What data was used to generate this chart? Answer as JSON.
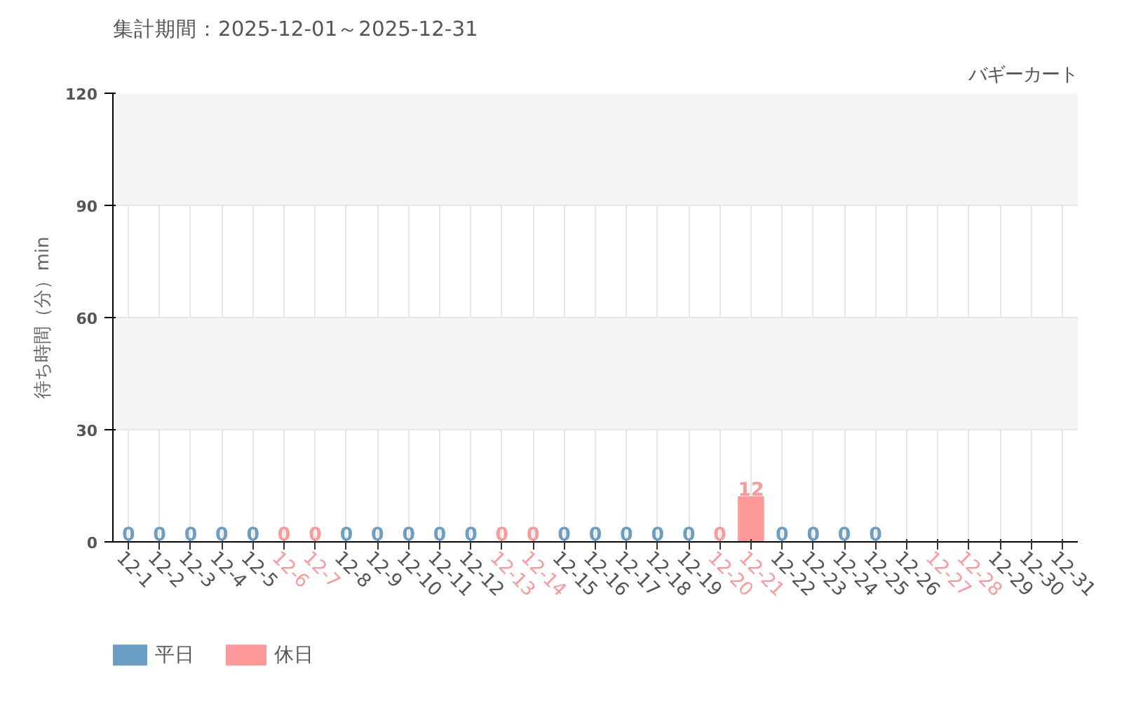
{
  "chart_data": {
    "type": "bar",
    "title": "集計期間：2025-12-01～2025-12-31",
    "subtitle": "バギーカート",
    "ylabel": "待ち時間（分）min",
    "categories": [
      "12-1",
      "12-2",
      "12-3",
      "12-4",
      "12-5",
      "12-6",
      "12-7",
      "12-8",
      "12-9",
      "12-10",
      "12-11",
      "12-12",
      "12-13",
      "12-14",
      "12-15",
      "12-16",
      "12-17",
      "12-18",
      "12-19",
      "12-20",
      "12-21",
      "12-22",
      "12-23",
      "12-24",
      "12-25",
      "12-26",
      "12-27",
      "12-28",
      "12-29",
      "12-30",
      "12-31"
    ],
    "colors": [
      "#555555",
      "#555555",
      "#555555",
      "#555555",
      "#555555",
      "#ff9999",
      "#ff9999",
      "#555555",
      "#555555",
      "#555555",
      "#555555",
      "#555555",
      "#ff9999",
      "#ff9999",
      "#555555",
      "#555555",
      "#555555",
      "#555555",
      "#555555",
      "#ff9999",
      "#ff9999",
      "#555555",
      "#555555",
      "#555555",
      "#555555",
      "#555555",
      "#ff9999",
      "#ff9999",
      "#555555",
      "#555555",
      "#555555"
    ],
    "series": [
      {
        "name": "平日",
        "color": "#6a9ec5",
        "values": [
          0,
          0,
          0,
          0,
          0,
          null,
          null,
          0,
          0,
          0,
          0,
          0,
          null,
          null,
          0,
          0,
          0,
          0,
          0,
          null,
          null,
          0,
          0,
          0,
          0,
          null,
          null,
          null,
          null,
          null,
          null
        ]
      },
      {
        "name": "休日",
        "color": "#ff9999",
        "values": [
          null,
          null,
          null,
          null,
          null,
          0,
          0,
          null,
          null,
          null,
          null,
          null,
          0,
          0,
          null,
          null,
          null,
          null,
          null,
          0,
          12,
          null,
          null,
          null,
          null,
          null,
          null,
          null,
          null,
          null,
          null
        ]
      }
    ],
    "ylim": [
      0,
      120
    ],
    "yticks": [
      0,
      30,
      60,
      90,
      120
    ],
    "grid": true,
    "legend": "bottom left",
    "data_labels": true
  }
}
